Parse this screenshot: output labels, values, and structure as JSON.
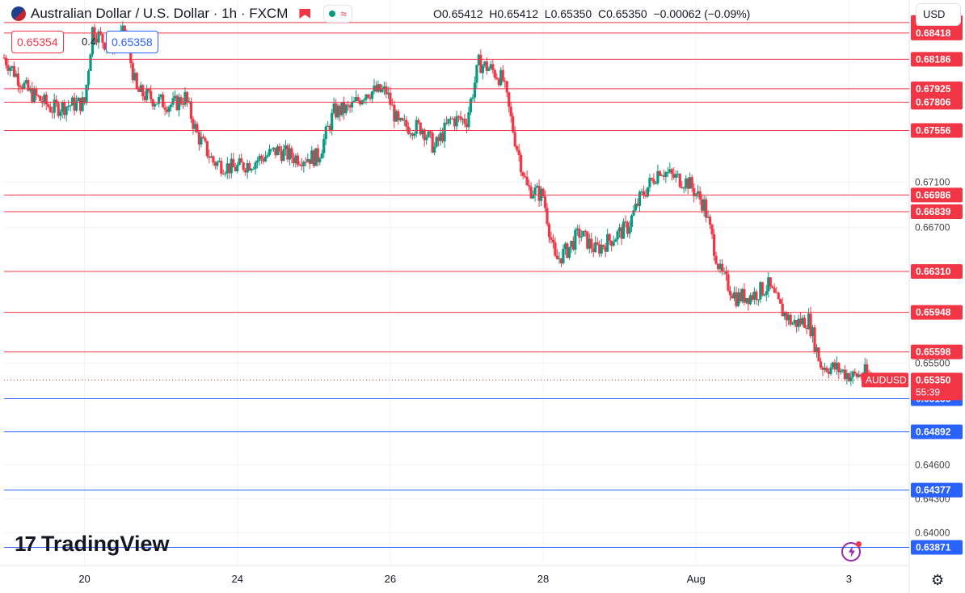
{
  "header": {
    "title": "Australian Dollar / U.S. Dollar · 1h · FXCM",
    "open": "O0.65412",
    "high": "H0.65412",
    "low": "L0.65350",
    "close": "C0.65350",
    "change": "−0.00062 (−0.09%)",
    "sell_price": "0.65354",
    "spread": "0.4",
    "buy_price": "0.65358",
    "currency": "USD",
    "logo_text": "TradingView"
  },
  "colors": {
    "up": "#089981",
    "down": "#f23645",
    "resistance": "#f23645",
    "support": "#2962ff",
    "grid": "#f0f3fa",
    "text": "#131722"
  },
  "chart_data": {
    "type": "candlestick",
    "symbol": "AUDUSD",
    "last_price": "0.65350",
    "countdown": "55:39",
    "ylim": [
      0.6371,
      0.6871
    ],
    "y_ticks": [
      "0.67100",
      "0.66700",
      "0.65500",
      "0.64600",
      "0.64300",
      "0.64000"
    ],
    "x_ticks": [
      {
        "label": "20",
        "x": 20
      },
      {
        "label": "24",
        "x": 58
      },
      {
        "label": "26",
        "x": 96
      },
      {
        "label": "28",
        "x": 134
      },
      {
        "label": "Aug",
        "x": 172
      },
      {
        "label": "3",
        "x": 210
      }
    ],
    "xlim": [
      0,
      225
    ],
    "resistance_levels": [
      "0.68511",
      "0.68418",
      "0.68186",
      "0.67925",
      "0.67806",
      "0.67556",
      "0.66986",
      "0.66839",
      "0.66310",
      "0.65948",
      "0.65598"
    ],
    "support_levels": [
      "0.65185",
      "0.64892",
      "0.64377",
      "0.63871"
    ],
    "series": [
      {
        "x": 0,
        "close": 0.682
      },
      {
        "x": 6,
        "close": 0.679
      },
      {
        "x": 12,
        "close": 0.6775
      },
      {
        "x": 16,
        "close": 0.6778
      },
      {
        "x": 20,
        "close": 0.678
      },
      {
        "x": 22,
        "close": 0.6845
      },
      {
        "x": 26,
        "close": 0.683
      },
      {
        "x": 30,
        "close": 0.6842
      },
      {
        "x": 33,
        "close": 0.679
      },
      {
        "x": 38,
        "close": 0.6782
      },
      {
        "x": 42,
        "close": 0.6778
      },
      {
        "x": 45,
        "close": 0.6785
      },
      {
        "x": 48,
        "close": 0.6752
      },
      {
        "x": 52,
        "close": 0.6728
      },
      {
        "x": 57,
        "close": 0.6722
      },
      {
        "x": 62,
        "close": 0.6728
      },
      {
        "x": 68,
        "close": 0.6738
      },
      {
        "x": 72,
        "close": 0.6732
      },
      {
        "x": 78,
        "close": 0.6732
      },
      {
        "x": 82,
        "close": 0.6772
      },
      {
        "x": 86,
        "close": 0.6775
      },
      {
        "x": 90,
        "close": 0.679
      },
      {
        "x": 95,
        "close": 0.679
      },
      {
        "x": 98,
        "close": 0.676
      },
      {
        "x": 104,
        "close": 0.6758
      },
      {
        "x": 107,
        "close": 0.674
      },
      {
        "x": 111,
        "close": 0.6765
      },
      {
        "x": 115,
        "close": 0.6765
      },
      {
        "x": 118,
        "close": 0.6815
      },
      {
        "x": 121,
        "close": 0.681
      },
      {
        "x": 124,
        "close": 0.68
      },
      {
        "x": 127,
        "close": 0.6748
      },
      {
        "x": 130,
        "close": 0.6705
      },
      {
        "x": 134,
        "close": 0.6698
      },
      {
        "x": 137,
        "close": 0.664
      },
      {
        "x": 140,
        "close": 0.665
      },
      {
        "x": 143,
        "close": 0.6665
      },
      {
        "x": 147,
        "close": 0.665
      },
      {
        "x": 151,
        "close": 0.666
      },
      {
        "x": 155,
        "close": 0.667
      },
      {
        "x": 158,
        "close": 0.6695
      },
      {
        "x": 163,
        "close": 0.6722
      },
      {
        "x": 166,
        "close": 0.6715
      },
      {
        "x": 170,
        "close": 0.671
      },
      {
        "x": 174,
        "close": 0.669
      },
      {
        "x": 178,
        "close": 0.663
      },
      {
        "x": 182,
        "close": 0.6608
      },
      {
        "x": 186,
        "close": 0.661
      },
      {
        "x": 190,
        "close": 0.6618
      },
      {
        "x": 193,
        "close": 0.6598
      },
      {
        "x": 196,
        "close": 0.6585
      },
      {
        "x": 200,
        "close": 0.6588
      },
      {
        "x": 203,
        "close": 0.6548
      },
      {
        "x": 207,
        "close": 0.6545
      },
      {
        "x": 211,
        "close": 0.6538
      },
      {
        "x": 214,
        "close": 0.6541
      },
      {
        "x": 216,
        "close": 0.6535
      }
    ]
  }
}
